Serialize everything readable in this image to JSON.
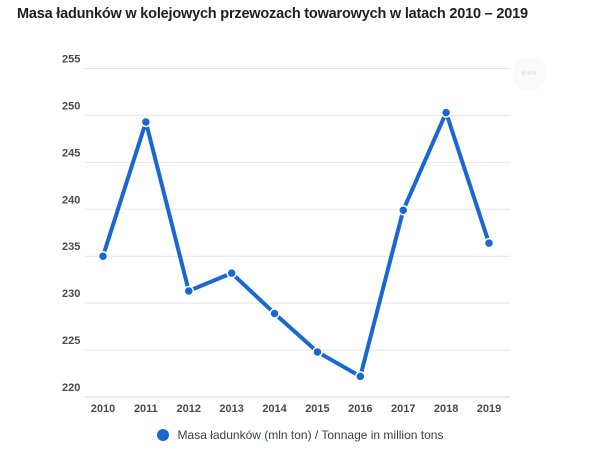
{
  "header": {
    "title": "Masa ładunków w kolejowych przewozach towarowych w latach 2010 – 2019"
  },
  "controls": {
    "more_options_icon": "•••"
  },
  "legend": {
    "label": "Masa ładunków (mln ton) / Tonnage in million tons"
  },
  "chart_data": {
    "type": "line",
    "title": "Masa ładunków w kolejowych przewozach towarowych w latach 2010 – 2019",
    "categories": [
      "2010",
      "2011",
      "2012",
      "2013",
      "2014",
      "2015",
      "2016",
      "2017",
      "2018",
      "2019"
    ],
    "series": [
      {
        "name": "Masa ładunków (mln ton) / Tonnage in million tons",
        "values": [
          235.0,
          249.3,
          231.3,
          233.2,
          228.9,
          224.8,
          222.2,
          239.9,
          250.3,
          236.4
        ]
      }
    ],
    "xlabel": "",
    "ylabel": "",
    "ylim": [
      220,
      255
    ],
    "yticks": [
      220,
      225,
      230,
      235,
      240,
      245,
      250,
      255
    ],
    "grid": true,
    "legend_position": "bottom",
    "colors": {
      "line": "#1967d2",
      "point_fill": "#1967d2",
      "point_ring": "#ffffff",
      "grid_line": "#e7e7e7",
      "baseline": "#d6d6d6",
      "tick_text": "#4a4a4a",
      "title_text": "#1f1f1f",
      "legend_text": "#3c4043",
      "background": "#ffffff"
    }
  }
}
